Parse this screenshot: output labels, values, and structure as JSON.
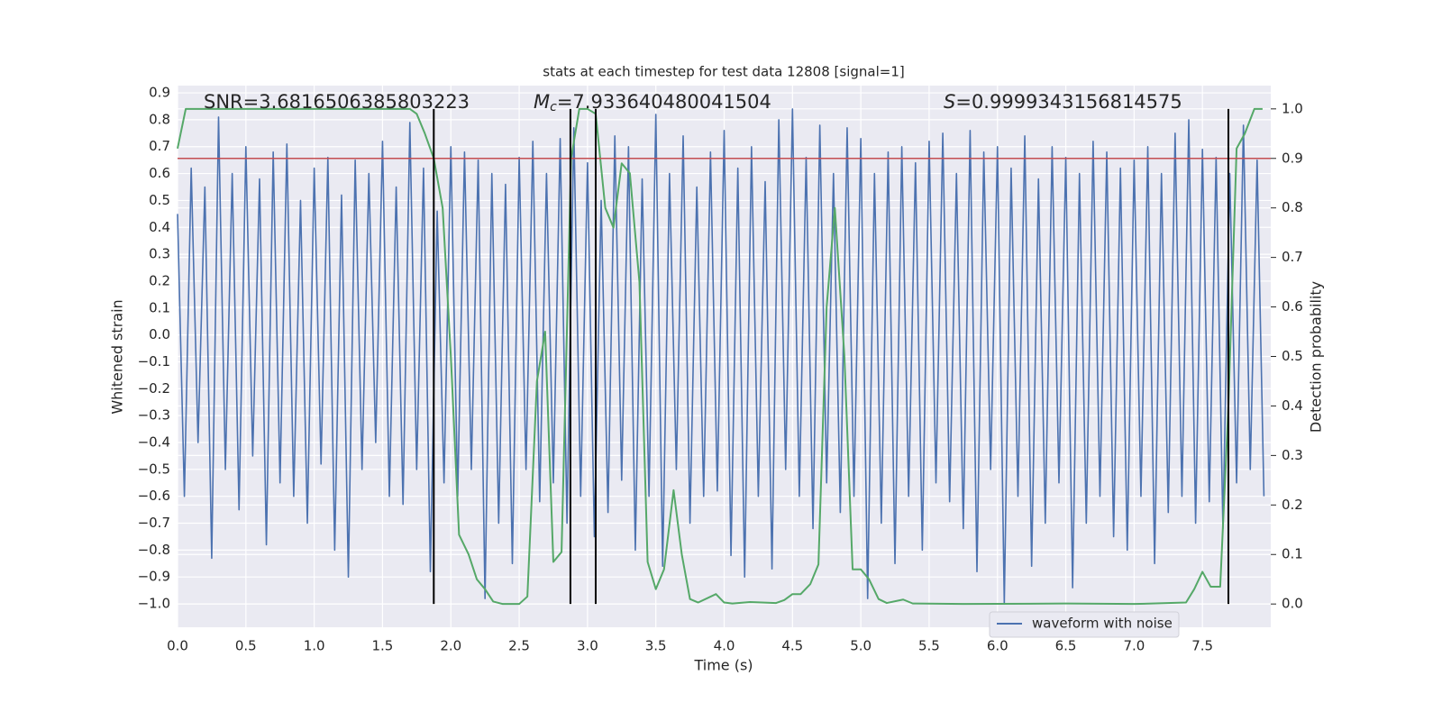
{
  "chart_data": {
    "type": "line",
    "title": "stats at each timestep for test data 12808 [signal=1]",
    "xlabel": "Time (s)",
    "ylabel": "Whitened strain",
    "y2label": "Detection probability",
    "xlim": [
      0,
      8.0
    ],
    "ylim": [
      -1.087,
      0.927
    ],
    "y2lim": [
      -0.047,
      1.047
    ],
    "xticks": [
      {
        "value": 0,
        "label": "0.0"
      },
      {
        "value": 0.5,
        "label": "0.5"
      },
      {
        "value": 1,
        "label": "1.0"
      },
      {
        "value": 1.5,
        "label": "1.5"
      },
      {
        "value": 2,
        "label": "2.0"
      },
      {
        "value": 2.5,
        "label": "2.5"
      },
      {
        "value": 3,
        "label": "3.0"
      },
      {
        "value": 3.5,
        "label": "3.5"
      },
      {
        "value": 4,
        "label": "4.0"
      },
      {
        "value": 4.5,
        "label": "4.5"
      },
      {
        "value": 5,
        "label": "5.0"
      },
      {
        "value": 5.5,
        "label": "5.5"
      },
      {
        "value": 6,
        "label": "6.0"
      },
      {
        "value": 6.5,
        "label": "6.5"
      },
      {
        "value": 7,
        "label": "7.0"
      },
      {
        "value": 7.5,
        "label": "7.5"
      }
    ],
    "yticks": [
      {
        "value": 0.9,
        "label": "0.9"
      },
      {
        "value": 0.8,
        "label": "0.8"
      },
      {
        "value": 0.7,
        "label": "0.7"
      },
      {
        "value": 0.6,
        "label": "0.6"
      },
      {
        "value": 0.5,
        "label": "0.5"
      },
      {
        "value": 0.4,
        "label": "0.4"
      },
      {
        "value": 0.3,
        "label": "0.3"
      },
      {
        "value": 0.2,
        "label": "0.2"
      },
      {
        "value": 0.1,
        "label": "0.1"
      },
      {
        "value": 0,
        "label": "0.0"
      },
      {
        "value": -0.1,
        "label": "−0.1"
      },
      {
        "value": -0.2,
        "label": "−0.2"
      },
      {
        "value": -0.3,
        "label": "−0.3"
      },
      {
        "value": -0.4,
        "label": "−0.4"
      },
      {
        "value": -0.5,
        "label": "−0.5"
      },
      {
        "value": -0.6,
        "label": "−0.6"
      },
      {
        "value": -0.7,
        "label": "−0.7"
      },
      {
        "value": -0.8,
        "label": "−0.8"
      },
      {
        "value": -0.9,
        "label": "−0.9"
      },
      {
        "value": -1,
        "label": "−1.0"
      }
    ],
    "y2ticks": [
      {
        "value": 0,
        "label": "0.0"
      },
      {
        "value": 0.1,
        "label": "0.1"
      },
      {
        "value": 0.2,
        "label": "0.2"
      },
      {
        "value": 0.3,
        "label": "0.3"
      },
      {
        "value": 0.4,
        "label": "0.4"
      },
      {
        "value": 0.5,
        "label": "0.5"
      },
      {
        "value": 0.6,
        "label": "0.6"
      },
      {
        "value": 0.7,
        "label": "0.7"
      },
      {
        "value": 0.8,
        "label": "0.8"
      },
      {
        "value": 0.9,
        "label": "0.9"
      },
      {
        "value": 1,
        "label": "1.0"
      }
    ],
    "grid": true,
    "legend": "lower right",
    "series": [
      {
        "name": "waveform with noise",
        "color": "#4c72b0",
        "x": [
          0,
          0.05,
          0.1,
          0.15,
          0.2,
          0.25,
          0.3,
          0.35,
          0.4,
          0.45,
          0.5,
          0.55,
          0.6,
          0.65,
          0.7,
          0.75,
          0.8,
          0.85,
          0.9,
          0.95,
          1,
          1.05,
          1.1,
          1.15,
          1.2,
          1.25,
          1.3,
          1.35,
          1.4,
          1.45,
          1.5,
          1.55,
          1.6,
          1.65,
          1.7,
          1.75,
          1.8,
          1.85,
          1.9,
          1.95,
          2,
          2.05,
          2.1,
          2.15,
          2.2,
          2.25,
          2.3,
          2.35,
          2.4,
          2.45,
          2.5,
          2.55,
          2.6,
          2.65,
          2.7,
          2.75,
          2.8,
          2.85,
          2.9,
          2.95,
          3,
          3.05,
          3.1,
          3.15,
          3.2,
          3.25,
          3.3,
          3.35,
          3.4,
          3.45,
          3.5,
          3.55,
          3.6,
          3.65,
          3.7,
          3.75,
          3.8,
          3.85,
          3.9,
          3.95,
          4,
          4.05,
          4.1,
          4.15,
          4.2,
          4.25,
          4.3,
          4.35,
          4.4,
          4.45,
          4.5,
          4.55,
          4.6,
          4.65,
          4.7,
          4.75,
          4.8,
          4.85,
          4.9,
          4.95,
          5,
          5.05,
          5.1,
          5.15,
          5.2,
          5.25,
          5.3,
          5.35,
          5.4,
          5.45,
          5.5,
          5.55,
          5.6,
          5.65,
          5.7,
          5.75,
          5.8,
          5.85,
          5.9,
          5.95,
          6,
          6.05,
          6.1,
          6.15,
          6.2,
          6.25,
          6.3,
          6.35,
          6.4,
          6.45,
          6.5,
          6.55,
          6.6,
          6.65,
          6.7,
          6.75,
          6.8,
          6.85,
          6.9,
          6.95,
          7,
          7.05,
          7.1,
          7.15,
          7.2,
          7.25,
          7.3,
          7.35,
          7.4,
          7.45,
          7.5,
          7.55,
          7.6,
          7.65,
          7.7,
          7.75,
          7.8,
          7.85,
          7.9,
          7.95
        ],
        "values": [
          0.45,
          -0.6,
          0.62,
          -0.4,
          0.55,
          -0.83,
          0.81,
          -0.5,
          0.6,
          -0.65,
          0.7,
          -0.45,
          0.58,
          -0.78,
          0.68,
          -0.55,
          0.71,
          -0.6,
          0.5,
          -0.7,
          0.62,
          -0.48,
          0.66,
          -0.8,
          0.52,
          -0.9,
          0.65,
          -0.5,
          0.6,
          -0.4,
          0.72,
          -0.6,
          0.55,
          -0.63,
          0.79,
          -0.5,
          0.62,
          -0.88,
          0.46,
          -0.55,
          0.7,
          -0.6,
          0.68,
          -0.5,
          0.65,
          -0.98,
          0.6,
          -0.7,
          0.56,
          -0.85,
          0.66,
          -0.5,
          0.72,
          -0.62,
          0.6,
          -0.55,
          0.73,
          -0.7,
          0.77,
          -0.6,
          0.64,
          -0.75,
          0.5,
          -0.66,
          0.74,
          -0.54,
          0.7,
          -0.8,
          0.58,
          -0.6,
          0.82,
          -0.86,
          0.6,
          -0.5,
          0.74,
          -0.7,
          0.55,
          -0.6,
          0.68,
          -0.58,
          0.76,
          -0.82,
          0.62,
          -0.9,
          0.7,
          -0.6,
          0.57,
          -0.87,
          0.8,
          -0.5,
          0.84,
          -0.6,
          0.66,
          -0.72,
          0.78,
          -0.55,
          0.6,
          -0.66,
          0.77,
          -0.6,
          0.73,
          -0.98,
          0.6,
          -0.7,
          0.68,
          -0.85,
          0.7,
          -0.6,
          0.64,
          -0.8,
          0.72,
          -0.55,
          0.75,
          -0.62,
          0.6,
          -0.72,
          0.76,
          -0.88,
          0.68,
          -0.5,
          0.7,
          -1.0,
          0.62,
          -0.6,
          0.74,
          -0.86,
          0.58,
          -0.7,
          0.7,
          -0.55,
          0.66,
          -0.94,
          0.6,
          -0.7,
          0.72,
          -0.6,
          0.68,
          -0.75,
          0.62,
          -0.8,
          0.65,
          -0.6,
          0.7,
          -0.85,
          0.6,
          -0.66,
          0.75,
          -0.6,
          0.8,
          -0.7,
          0.69,
          -0.62,
          0.66,
          -0.72,
          0.6,
          -0.55,
          0.78,
          -0.5,
          0.65,
          -0.6
        ]
      },
      {
        "color": "#55a868",
        "axis": "y2",
        "x": [
          0,
          0.06,
          1.7,
          1.75,
          1.81,
          1.875,
          1.94,
          2,
          2.06,
          2.13,
          2.19,
          2.25,
          2.31,
          2.38,
          2.5,
          2.56,
          2.63,
          2.69,
          2.75,
          2.81,
          2.88,
          2.94,
          3,
          3.06,
          3.13,
          3.19,
          3.25,
          3.31,
          3.38,
          3.44,
          3.5,
          3.56,
          3.63,
          3.69,
          3.75,
          3.81,
          3.94,
          4,
          4.06,
          4.19,
          4.38,
          4.44,
          4.5,
          4.56,
          4.63,
          4.69,
          4.75,
          4.81,
          4.88,
          4.94,
          5,
          5.06,
          5.13,
          5.19,
          5.31,
          5.38,
          5.75,
          6.5,
          7,
          7.38,
          7.44,
          7.5,
          7.56,
          7.63,
          7.69,
          7.75,
          7.81,
          7.88,
          7.94
        ],
        "values": [
          0.92,
          1.0,
          1.0,
          0.99,
          0.95,
          0.9,
          0.8,
          0.5,
          0.14,
          0.1,
          0.05,
          0.03,
          0.005,
          0.0,
          0.0,
          0.015,
          0.45,
          0.55,
          0.085,
          0.105,
          0.9,
          1.0,
          1.0,
          0.99,
          0.8,
          0.76,
          0.89,
          0.87,
          0.65,
          0.085,
          0.03,
          0.07,
          0.23,
          0.1,
          0.01,
          0.003,
          0.02,
          0.003,
          0.001,
          0.004,
          0.002,
          0.008,
          0.02,
          0.02,
          0.04,
          0.08,
          0.6,
          0.8,
          0.5,
          0.07,
          0.07,
          0.05,
          0.01,
          0.002,
          0.009,
          0.001,
          0.0,
          0.001,
          0.0,
          0.003,
          0.03,
          0.065,
          0.035,
          0.035,
          0.4,
          0.92,
          0.95,
          1.0,
          1.0
        ]
      }
    ],
    "threshold": {
      "y2": 0.9,
      "color": "#c44e52"
    },
    "vlines": {
      "x": [
        1.875,
        2.875,
        3.06,
        7.69
      ],
      "y2": [
        0,
        1
      ],
      "color": "#000000"
    },
    "annotations": [
      {
        "text": "SNR=3.6816506385803223"
      },
      {
        "symbol": "M",
        "subscript": "c",
        "text": "=7.933640480041504"
      },
      {
        "symbol": "S",
        "text": "=0.9999343156814575"
      }
    ]
  }
}
